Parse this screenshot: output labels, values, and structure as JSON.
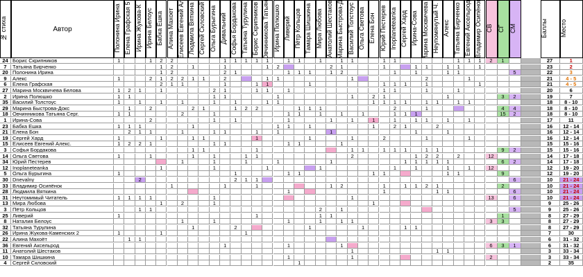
{
  "colors": {
    "purple": "#c8a0f0",
    "pink": "#f5aacc",
    "red_bg": "#e33b3b",
    "green_hdr": "#a8e0a0",
    "pink_hdr": "#f7c4dd",
    "purple_hdr": "#d7b4f5",
    "gray": "#b8b8b8",
    "lav": "#e4d4f8"
  },
  "header": {
    "num": "№ стиха",
    "author": "Автор",
    "voters": [
      "Полонина Ирина",
      "Елена Графская 5",
      "Ирина Жукова-К",
      "Ирина Белоус",
      "Бабка Ешка",
      "Алина Махоет",
      "Елисеев Евгений Ал.",
      "Людмила Вяткина",
      "Сергей Скловский",
      "Ольга Бурыгина",
      "Дивальний",
      "Софья Бордакова",
      "Татьяна Турулина",
      "Борис Скрипников",
      "Овчинникова Татьяна",
      "Ирина Полюшко",
      "Ливерий",
      "Пётр Кольцов",
      "Тамара Шишкина",
      "Мира Любова",
      "Анатолий Шестаков",
      "Марина Быстрова-Д.",
      "Василий Толстоус",
      "Ольга Светова",
      "Елена Бон",
      "Юрий Пестерев",
      "Inoplaneteanka",
      "Сергей Хард",
      "Ирина-Сова",
      "Марина Москвичева Б",
      "Неупомянутый Ч.",
      "Алекс",
      "Татьяна Бирченко",
      "Евгений Аксельрод",
      "Владимир Осипёнок"
    ],
    "sv": "СВ",
    "sg": "СГ",
    "sm": "СМ",
    "score": "Баллы",
    "place": "Место"
  },
  "rows": [
    {
      "n": "24",
      "a": "Борис Скрипников",
      "v": {
        "0": "1",
        "3": "1",
        "4": "2",
        "5": "2",
        "10": "1",
        "11": "1",
        "12": "1",
        "13": "1",
        "14": "1",
        "16": "1",
        "17": "1",
        "19": "1",
        "21": "1",
        "22": "1",
        "25": "1",
        "26": "1",
        "32": "1",
        "33": "1",
        "34": "1"
      },
      "sv": "2",
      "sg": "1",
      "sm": "",
      "s": "27",
      "p": "1",
      "pc": "red"
    },
    {
      "n": "7",
      "a": "Татьяна Бирченко",
      "v": {
        "4": "1",
        "5": "2",
        "7": "1",
        "10": "1",
        "14": "1",
        "15": "2",
        "20": "2",
        "21": "1",
        "25": "1",
        "28": "1",
        "29": "1",
        "31": "1",
        "32": "1",
        "34": "1"
      },
      "sv": "",
      "sg": "",
      "sm": "",
      "s": "23",
      "p": "2",
      "pc": "red"
    },
    {
      "n": "20",
      "a": "Полонина Ирина",
      "v": {
        "4": "1",
        "5": "2",
        "10": "2",
        "11": "1",
        "16": "1",
        "17": "1",
        "18": "1",
        "20": "1",
        "21": "2",
        "26": "1",
        "28": "1",
        "31": "1",
        "32": "1"
      },
      "sv": "",
      "sg": "",
      "sm": "5",
      "s": "22",
      "p": "3",
      "pc": "ora"
    },
    {
      "n": "9",
      "a": "Алекс",
      "v": {
        "0": "1",
        "3": "2",
        "4": "1",
        "5": "2",
        "6": "2",
        "7": "1",
        "8": "1",
        "10": "2",
        "14": "1",
        "15": "1",
        "22": "1",
        "29": "2",
        "33": "1"
      },
      "sv": "",
      "sg": "",
      "sm": "",
      "s": "21",
      "p": "4 - 5",
      "pc": "ora"
    },
    {
      "n": "6",
      "a": "Елена Графская",
      "v": {
        "4": "2",
        "5": "1",
        "6": "1",
        "10": "1",
        "13": "1",
        "14": "1",
        "18": "1",
        "25": "1",
        "26": "1",
        "27": "1",
        "29": "1",
        "34": "1"
      },
      "sv": "",
      "sg": "",
      "sm": "",
      "s": "21",
      "p": "4 - 5",
      "pc": "ora"
    },
    {
      "n": "27",
      "a": "Марина Москвичева Белова",
      "v": {
        "0": "1",
        "1": "2",
        "2": "1",
        "4": "1",
        "9": "2",
        "10": "1",
        "13": "1",
        "14": "1",
        "16": "1",
        "25": "1",
        "26": "1",
        "29": "1",
        "32": "1"
      },
      "sv": "",
      "sg": "",
      "sm": "",
      "s": "20",
      "p": "6",
      "pc": ""
    },
    {
      "n": "2",
      "a": "Ирина Полюшко",
      "v": {
        "0": "1",
        "1": "1",
        "9": "1",
        "10": "1",
        "15": "1",
        "22": "1",
        "24": "2",
        "25": "1",
        "31": "1"
      },
      "sv": "",
      "sg": "3",
      "sm": "2",
      "s": "19",
      "p": "7",
      "pc": ""
    },
    {
      "n": "35",
      "a": "Василий Толстоус",
      "v": {
        "0": "1",
        "2": "1",
        "4": "1",
        "6": "1",
        "9": "1",
        "11": "1",
        "14": "1",
        "15": "1",
        "24": "1",
        "25": "1",
        "26": "1",
        "27": "1",
        "29": "1",
        "30": "1",
        "32": "1",
        "33": "1"
      },
      "sv": "",
      "sg": "",
      "sm": "",
      "s": "18",
      "p": "8 - 10",
      "pc": ""
    },
    {
      "n": "29",
      "a": "Марина Быстрова-Докс",
      "v": {
        "1": "1",
        "3": "2",
        "7": "2",
        "8": "1",
        "11": "1",
        "12": "2",
        "13": "2",
        "17": "1",
        "18": "1",
        "19": "1",
        "26": "2",
        "29": "1"
      },
      "sv": "",
      "sg": "4",
      "sm": "4",
      "s": "18",
      "p": "8 - 10",
      "pc": ""
    },
    {
      "n": "18",
      "a": "Овчинникова Татьяна Серг.",
      "v": {
        "0": "1",
        "1": "1",
        "6": "2",
        "9": "1",
        "16": "1",
        "17": "1",
        "19": "1",
        "21": "1",
        "23": "1",
        "26": "1",
        "27": "1",
        "28": "1"
      },
      "sv": "",
      "sg": "15",
      "sm": "2",
      "s": "18",
      "p": "8 - 10",
      "pc": ""
    },
    {
      "n": "1",
      "a": "Ирина-Сова",
      "v": {
        "3": "2",
        "9": "1",
        "11": "1",
        "16": "1",
        "20": "1",
        "22": "1",
        "24": "1",
        "26": "1",
        "28": "1",
        "29": "1",
        "31": "1",
        "33": "1"
      },
      "sv": "",
      "sg": "",
      "sm": "",
      "s": "17",
      "p": "11",
      "pc": ""
    },
    {
      "n": "23",
      "a": "Бабка Ешка",
      "v": {
        "0": "1",
        "1": "1",
        "2": "1",
        "7": "1",
        "15": "1",
        "16": "1",
        "18": "1",
        "24": "1",
        "26": "2",
        "27": "1",
        "30": "2"
      },
      "sv": "",
      "sg": "",
      "sm": "",
      "s": "16",
      "p": "12 - 14",
      "pc": ""
    },
    {
      "n": "21",
      "a": "Елена Бон",
      "v": {
        "1": "2",
        "2": "1",
        "3": "1",
        "6": "1",
        "9": "1",
        "10": "1",
        "13": "1",
        "15": "1",
        "20": "1",
        "28": "1",
        "31": "1"
      },
      "sv": "",
      "sg": "",
      "sm": "",
      "s": "16",
      "p": "12 - 14",
      "pc": ""
    },
    {
      "n": "19",
      "a": "Сергей Хард",
      "v": {
        "0": "1",
        "4": "1",
        "7": "1",
        "8": "1",
        "13": "1",
        "18": "1",
        "22": "1",
        "25": "2",
        "29": "1",
        "33": "1"
      },
      "sv": "",
      "sg": "",
      "sm": "",
      "s": "16",
      "p": "12 - 14",
      "pc": ""
    },
    {
      "n": "15",
      "a": "Елисеев Евгений Алекс.",
      "v": {
        "0": "1",
        "1": "2",
        "2": "2",
        "3": "1",
        "9": "1",
        "10": "1",
        "16": "1",
        "17": "1",
        "21": "1"
      },
      "sv": "",
      "sg": "",
      "sm": "",
      "s": "15",
      "p": "15 - 16",
      "pc": ""
    },
    {
      "n": "3",
      "a": "Софья Бордакова",
      "v": {
        "7": "1",
        "8": "1",
        "13": "1",
        "22": "1",
        "23": "1",
        "25": "1",
        "26": "1",
        "27": "1",
        "29": "1",
        "30": "1"
      },
      "sv": "",
      "sg": "9",
      "sm": "2",
      "s": "15",
      "p": "15 - 16",
      "pc": ""
    },
    {
      "n": "14",
      "a": "Ольга Светова",
      "v": {
        "0": "1",
        "3": "1",
        "7": "1",
        "9": "1",
        "12": "1",
        "13": "1",
        "22": "2",
        "28": "1",
        "29": "2",
        "30": "2",
        "32": "2"
      },
      "sv": "12",
      "sg": "",
      "sm": "",
      "s": "14",
      "p": "17 - 18",
      "pc": ""
    },
    {
      "n": "34",
      "a": "Юрий Пестерев",
      "v": {
        "6": "1",
        "9": "1",
        "12": "1",
        "15": "1",
        "20": "1",
        "27": "1",
        "28": "1",
        "29": "1",
        "30": "1",
        "31": "1"
      },
      "sv": "",
      "sg": "6",
      "sm": "2",
      "s": "14",
      "p": "17 - 18",
      "pc": ""
    },
    {
      "n": "12",
      "a": "Inoplaneteanka",
      "v": {
        "4": "1",
        "9": "1",
        "14": "1",
        "19": "1",
        "26": "1",
        "28": "1",
        "31": "1",
        "33": "1"
      },
      "sv": "12",
      "sg": "",
      "sm": "",
      "s": "12",
      "p": "19 - 20",
      "pc": ""
    },
    {
      "n": "5",
      "a": "Ольга Бурыгина",
      "v": {
        "0": "1",
        "11": "1",
        "16": "1",
        "17": "1",
        "24": "1",
        "25": "1",
        "31": "1",
        "32": "1"
      },
      "sv": "",
      "sg": "9",
      "sm": "",
      "s": "12",
      "p": "19 - 20",
      "pc": ""
    },
    {
      "n": "30",
      "a": "Dnevalny",
      "v": {
        "2": "2",
        "11": "2",
        "12": "1",
        "13": "1"
      },
      "sv": "",
      "sg": "",
      "sm": "6",
      "s": "10",
      "p": "21 - 24",
      "pc": "purple"
    },
    {
      "n": "33",
      "a": "Владимир Осипёнок",
      "v": {
        "5": "1",
        "10": "1",
        "13": "1",
        "20": "1",
        "21": "2",
        "25": "1",
        "27": "1",
        "28": "1",
        "29": "2",
        "30": "1"
      },
      "sv": "",
      "sg": "2",
      "sm": "",
      "s": "10",
      "p": "21 - 24",
      "pc": "purple"
    },
    {
      "n": "28",
      "a": "Людмила Вяткина",
      "v": {
        "16": "1",
        "25": "1",
        "30": "1",
        "31": "1"
      },
      "sv": "",
      "sg": "",
      "sm": "6",
      "s": "10",
      "p": "21 - 24",
      "pc": "purple"
    },
    {
      "n": "31",
      "a": "Неутомимый Читатель",
      "v": {
        "0": "1",
        "1": "1",
        "2": "1",
        "3": "1",
        "9": "1",
        "22": "1"
      },
      "sv": "13",
      "sg": "",
      "sm": "6",
      "s": "10",
      "p": "21 - 24",
      "pc": "purple"
    },
    {
      "n": "13",
      "a": "Мира Любова",
      "v": {
        "4": "1",
        "6": "2",
        "9": "1",
        "24": "1"
      },
      "sv": "",
      "sg": "",
      "sm": "",
      "s": "9",
      "p": "25 - 26",
      "pc": ""
    },
    {
      "n": "3",
      "a": "Пётр Кольцов",
      "v": {
        "2": "1",
        "3": "1",
        "19": "2",
        "21": "1"
      },
      "sv": "",
      "sg": "",
      "sm": "5",
      "s": "9",
      "p": "25 - 26",
      "pc": ""
    },
    {
      "n": "25",
      "a": "Ливерий",
      "v": {
        "0": "1",
        "13": "1",
        "19": "1",
        "20": "1"
      },
      "sv": "",
      "sg": "1",
      "sm": "",
      "s": "8",
      "p": "27 - 29",
      "pc": ""
    },
    {
      "n": "8",
      "a": "Наталия Белоус",
      "v": {
        "6": "1",
        "9": "1",
        "16": "1",
        "19": "1",
        "21": "1",
        "22": "1"
      },
      "sv": "3",
      "sg": "3",
      "sm": "",
      "s": "8",
      "p": "27 - 29",
      "pc": ""
    },
    {
      "n": "32",
      "a": "Татьяна Турулина",
      "v": {
        "7": "1",
        "11": "2",
        "18": "1",
        "23": "1",
        "27": "1",
        "28": "1"
      },
      "sv": "",
      "sg": "",
      "sm": "",
      "s": "8",
      "p": "27 - 29",
      "pc": ""
    },
    {
      "n": "26",
      "a": "Ирина Жукова-Каменских 2",
      "v": {
        "0": "1",
        "4": "1",
        "12": "1"
      },
      "sv": "",
      "sg": "",
      "sm": "",
      "s": "7",
      "p": "30",
      "pc": ""
    },
    {
      "n": "22",
      "a": "Алина Махоёт",
      "v": {
        "1": "1",
        "2": "1"
      },
      "sv": "",
      "sg": "",
      "sm": "",
      "s": "6",
      "p": "31 - 32",
      "pc": ""
    },
    {
      "n": "36",
      "a": "Евгений Аксельрод",
      "v": {
        "10": "1",
        "16": "1",
        "21": "1"
      },
      "sv": "6",
      "sg": "3",
      "sm": "1",
      "s": "6",
      "p": "31 - 32",
      "pc": ""
    },
    {
      "n": "11",
      "a": "Анатолий Шестаков",
      "v": {
        "22": "1",
        "30": "1",
        "31": "1"
      },
      "sv": "",
      "sg": "",
      "sm": "",
      "s": "3",
      "p": "33 - 34",
      "pc": ""
    },
    {
      "n": "10",
      "a": "Тамара Шишкина",
      "v": {
        "16": "1",
        "22": "1"
      },
      "sv": "2",
      "sg": "",
      "sm": "",
      "s": "3",
      "p": "33 - 34",
      "pc": ""
    },
    {
      "n": "4",
      "a": "Сергей Скловский",
      "v": {
        "17": "1"
      },
      "sv": "",
      "sg": "",
      "sm": "",
      "s": "2",
      "p": "35",
      "pc": ""
    }
  ]
}
